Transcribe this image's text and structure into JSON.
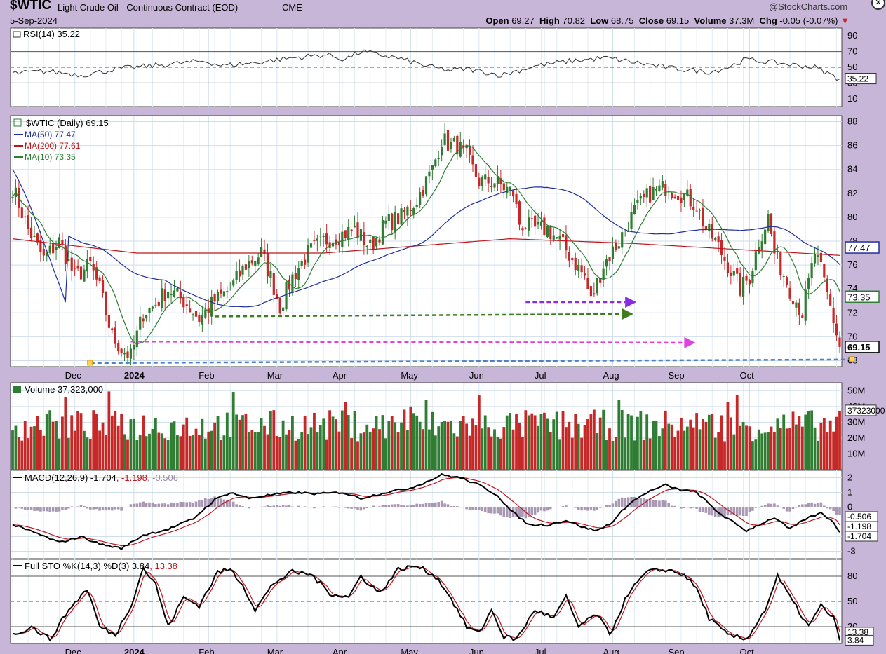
{
  "header": {
    "symbol": "$WTIC",
    "name": "Light Crude Oil - Continuous Contract (EOD)",
    "exchange": "CME",
    "date": "5-Sep-2024",
    "watermark": "@StockCharts.com",
    "stats": [
      {
        "label": "Open",
        "value": "69.27"
      },
      {
        "label": "High",
        "value": "70.82"
      },
      {
        "label": "Low",
        "value": "68.75"
      },
      {
        "label": "Close",
        "value": "69.15"
      },
      {
        "label": "Volume",
        "value": "37.3M"
      },
      {
        "label": "Chg",
        "value": "-0.05 (-0.07%)"
      }
    ],
    "chg_icon": "down-triangle-icon"
  },
  "colors": {
    "background": "#c8b6d8",
    "panel": "#ffffff",
    "grid": "#cfdde9",
    "up": "#2e7d32",
    "down": "#c62828",
    "ma50": "#1f2f9e",
    "ma200": "#c0141c",
    "ma10": "#2e7d32",
    "arrow_purple": "#8a2be2",
    "arrow_green": "#3e7d1e",
    "arrow_magenta": "#e040e0",
    "arrow_blue": "#4f7fc4"
  },
  "month_labels": [
    "Dec",
    "2024",
    "Feb",
    "Mar",
    "Apr",
    "May",
    "Jun",
    "Jul",
    "Aug",
    "Sep",
    "Oct"
  ],
  "chart_data": [
    {
      "type": "line",
      "panel": "rsi",
      "title": "RSI(14) 35.22",
      "y_ticks": [
        "90",
        "70",
        "50",
        "30",
        "10"
      ],
      "ylim": [
        0,
        100
      ],
      "reference_lines": [
        70,
        50,
        30
      ],
      "current_label": "35.22",
      "series": [
        {
          "values_anchor": [
            [
              0,
              42
            ],
            [
              10,
              45
            ],
            [
              20,
              40
            ],
            [
              30,
              48
            ],
            [
              40,
              52
            ],
            [
              55,
              58
            ],
            [
              60,
              52
            ],
            [
              70,
              56
            ],
            [
              80,
              62
            ],
            [
              90,
              66
            ],
            [
              95,
              60
            ],
            [
              100,
              70
            ],
            [
              110,
              62
            ],
            [
              120,
              50
            ],
            [
              125,
              46
            ],
            [
              130,
              48
            ],
            [
              140,
              40
            ],
            [
              150,
              52
            ],
            [
              160,
              58
            ],
            [
              170,
              62
            ],
            [
              180,
              55
            ],
            [
              190,
              48
            ],
            [
              200,
              44
            ],
            [
              205,
              50
            ],
            [
              210,
              60
            ],
            [
              220,
              55
            ],
            [
              230,
              50
            ],
            [
              237,
              35
            ]
          ]
        }
      ]
    },
    {
      "type": "candlestick",
      "panel": "price",
      "title": "$WTIC (Daily) 69.15",
      "legend": [
        {
          "label": "MA(50) 77.47",
          "color": "#1f2f9e"
        },
        {
          "label": "MA(200) 77.61",
          "color": "#c0141c"
        },
        {
          "label": "MA(10) 73.35",
          "color": "#2e7d32"
        }
      ],
      "y_ticks": [
        "88",
        "86",
        "84",
        "82",
        "80",
        "78",
        "76",
        "74",
        "72",
        "70",
        "68"
      ],
      "ylim": [
        67.5,
        88.5
      ],
      "price_labels": [
        {
          "value": 77.47,
          "text": "77.47",
          "color": "#1f2f9e"
        },
        {
          "value": 73.35,
          "text": "73.35",
          "color": "#2e7d32"
        },
        {
          "value": 69.15,
          "text": "69.15",
          "color": "#000000"
        }
      ],
      "close_anchors": [
        [
          0,
          82.5
        ],
        [
          5,
          79
        ],
        [
          10,
          76.5
        ],
        [
          15,
          78
        ],
        [
          20,
          75
        ],
        [
          25,
          76
        ],
        [
          28,
          74
        ],
        [
          30,
          72
        ],
        [
          32,
          70
        ],
        [
          35,
          69
        ],
        [
          38,
          68.3
        ],
        [
          42,
          72
        ],
        [
          45,
          72.5
        ],
        [
          50,
          74
        ],
        [
          55,
          73
        ],
        [
          60,
          71.5
        ],
        [
          65,
          73
        ],
        [
          70,
          74
        ],
        [
          75,
          76
        ],
        [
          80,
          77
        ],
        [
          83,
          75
        ],
        [
          86,
          72.5
        ],
        [
          90,
          75
        ],
        [
          95,
          77
        ],
        [
          100,
          78
        ],
        [
          105,
          78.5
        ],
        [
          110,
          79
        ],
        [
          115,
          77.5
        ],
        [
          120,
          79.5
        ],
        [
          125,
          80
        ],
        [
          130,
          81.5
        ],
        [
          135,
          84
        ],
        [
          138,
          86.5
        ],
        [
          141,
          86
        ],
        [
          143,
          86
        ],
        [
          146,
          85
        ],
        [
          150,
          83
        ],
        [
          155,
          83
        ],
        [
          158,
          82.5
        ],
        [
          161,
          82
        ],
        [
          163,
          79.5
        ],
        [
          168,
          79
        ],
        [
          172,
          79
        ],
        [
          176,
          78
        ],
        [
          180,
          76.5
        ],
        [
          184,
          75
        ],
        [
          186,
          73
        ],
        [
          190,
          76
        ],
        [
          195,
          78
        ],
        [
          200,
          80.5
        ],
        [
          205,
          82
        ],
        [
          210,
          82.5
        ],
        [
          215,
          82
        ],
        [
          220,
          81
        ],
        [
          223,
          79
        ],
        [
          226,
          78
        ],
        [
          230,
          76
        ],
        [
          234,
          74
        ],
        [
          237,
          75
        ],
        [
          240,
          78
        ],
        [
          243,
          80
        ],
        [
          245,
          77
        ],
        [
          250,
          74
        ],
        [
          254,
          72
        ],
        [
          258,
          77
        ],
        [
          260,
          75.5
        ],
        [
          263,
          72.5
        ],
        [
          266,
          69.15
        ]
      ],
      "close": 69.15,
      "annotations": [
        {
          "type": "arrow",
          "from": [
            165,
            72.9
          ],
          "to": [
            197,
            72.9
          ],
          "color": "#8a2be2"
        },
        {
          "type": "arrow",
          "from": [
            65,
            71.7
          ],
          "to": [
            196,
            71.9
          ],
          "color": "#3e7d1e"
        },
        {
          "type": "arrow",
          "from": [
            38,
            69.6
          ],
          "to": [
            216,
            69.5
          ],
          "color": "#e040e0"
        },
        {
          "type": "trendline",
          "from": [
            25,
            67.8
          ],
          "to": [
            270,
            68.1
          ],
          "color": "#4f7fc4"
        }
      ]
    },
    {
      "type": "bar",
      "panel": "volume",
      "title": "Volume 37,323,000",
      "y_ticks": [
        "50M",
        "40M",
        "30M",
        "20M",
        "10M"
      ],
      "ylim": [
        0,
        55
      ],
      "current_label": "37323000",
      "last_value_m": 37.3
    },
    {
      "type": "line",
      "panel": "macd",
      "title": "MACD(12,26,9)",
      "legend": [
        {
          "label": "-1.704",
          "color": "#000000"
        },
        {
          "label": "-1.198",
          "color": "#c0141c"
        },
        {
          "label": "-0.506",
          "color": "#9a8aa8"
        }
      ],
      "y_ticks": [
        "2",
        "1",
        "0",
        "-1",
        "-2",
        "-3"
      ],
      "ylim": [
        -3.5,
        2.5
      ],
      "price_labels": [
        {
          "value": -0.506,
          "text": "-0.506"
        },
        {
          "value": -1.198,
          "text": "-1.198"
        },
        {
          "value": -1.704,
          "text": "-1.704"
        }
      ],
      "macd_anchors": [
        [
          0,
          -1.2
        ],
        [
          8,
          -1.8
        ],
        [
          15,
          -2.4
        ],
        [
          22,
          -2.0
        ],
        [
          28,
          -2.5
        ],
        [
          35,
          -2.8
        ],
        [
          42,
          -1.9
        ],
        [
          50,
          -1.5
        ],
        [
          58,
          -0.8
        ],
        [
          65,
          0.5
        ],
        [
          70,
          1.0
        ],
        [
          76,
          0.6
        ],
        [
          82,
          0.8
        ],
        [
          90,
          1.0
        ],
        [
          98,
          0.9
        ],
        [
          106,
          1.0
        ],
        [
          112,
          0.6
        ],
        [
          120,
          1.0
        ],
        [
          128,
          1.3
        ],
        [
          134,
          1.8
        ],
        [
          138,
          2.2
        ],
        [
          144,
          2.0
        ],
        [
          150,
          1.5
        ],
        [
          156,
          0.8
        ],
        [
          160,
          -0.2
        ],
        [
          166,
          -1.2
        ],
        [
          172,
          -1.2
        ],
        [
          178,
          -0.9
        ],
        [
          184,
          -1.4
        ],
        [
          188,
          -1.6
        ],
        [
          193,
          -1.0
        ],
        [
          198,
          0.2
        ],
        [
          204,
          1.0
        ],
        [
          210,
          1.5
        ],
        [
          214,
          1.2
        ],
        [
          220,
          1.0
        ],
        [
          226,
          -0.2
        ],
        [
          230,
          -0.8
        ],
        [
          236,
          -1.6
        ],
        [
          240,
          -1.2
        ],
        [
          245,
          -0.7
        ],
        [
          250,
          -1.5
        ],
        [
          255,
          -0.8
        ],
        [
          260,
          -0.4
        ],
        [
          264,
          -1.0
        ],
        [
          266,
          -1.704
        ]
      ]
    },
    {
      "type": "line",
      "panel": "stochastic",
      "title": "Full STO %K(14,3) %D(3)",
      "legend": [
        {
          "label": "3.84",
          "color": "#000000"
        },
        {
          "label": "13.38",
          "color": "#c0141c"
        }
      ],
      "y_ticks": [
        "80",
        "50",
        "20"
      ],
      "ylim": [
        0,
        100
      ],
      "reference_lines": [
        80,
        50,
        20
      ],
      "price_labels": [
        {
          "value": 13.38,
          "text": "13.38"
        },
        {
          "value": 3.84,
          "text": "3.84"
        }
      ],
      "k_anchors": [
        [
          0,
          10
        ],
        [
          6,
          20
        ],
        [
          12,
          5
        ],
        [
          18,
          40
        ],
        [
          24,
          65
        ],
        [
          28,
          20
        ],
        [
          33,
          10
        ],
        [
          38,
          45
        ],
        [
          42,
          90
        ],
        [
          46,
          70
        ],
        [
          50,
          20
        ],
        [
          55,
          55
        ],
        [
          60,
          45
        ],
        [
          66,
          85
        ],
        [
          70,
          88
        ],
        [
          74,
          70
        ],
        [
          78,
          40
        ],
        [
          84,
          72
        ],
        [
          90,
          85
        ],
        [
          96,
          82
        ],
        [
          102,
          60
        ],
        [
          108,
          55
        ],
        [
          112,
          80
        ],
        [
          118,
          60
        ],
        [
          124,
          88
        ],
        [
          130,
          92
        ],
        [
          136,
          80
        ],
        [
          140,
          60
        ],
        [
          146,
          20
        ],
        [
          150,
          12
        ],
        [
          154,
          40
        ],
        [
          158,
          8
        ],
        [
          162,
          5
        ],
        [
          168,
          40
        ],
        [
          174,
          30
        ],
        [
          178,
          55
        ],
        [
          182,
          20
        ],
        [
          188,
          35
        ],
        [
          192,
          10
        ],
        [
          198,
          60
        ],
        [
          204,
          85
        ],
        [
          210,
          88
        ],
        [
          216,
          82
        ],
        [
          220,
          65
        ],
        [
          224,
          30
        ],
        [
          230,
          10
        ],
        [
          236,
          5
        ],
        [
          242,
          40
        ],
        [
          246,
          80
        ],
        [
          250,
          55
        ],
        [
          256,
          20
        ],
        [
          260,
          45
        ],
        [
          264,
          30
        ],
        [
          266,
          3.84
        ]
      ]
    }
  ]
}
